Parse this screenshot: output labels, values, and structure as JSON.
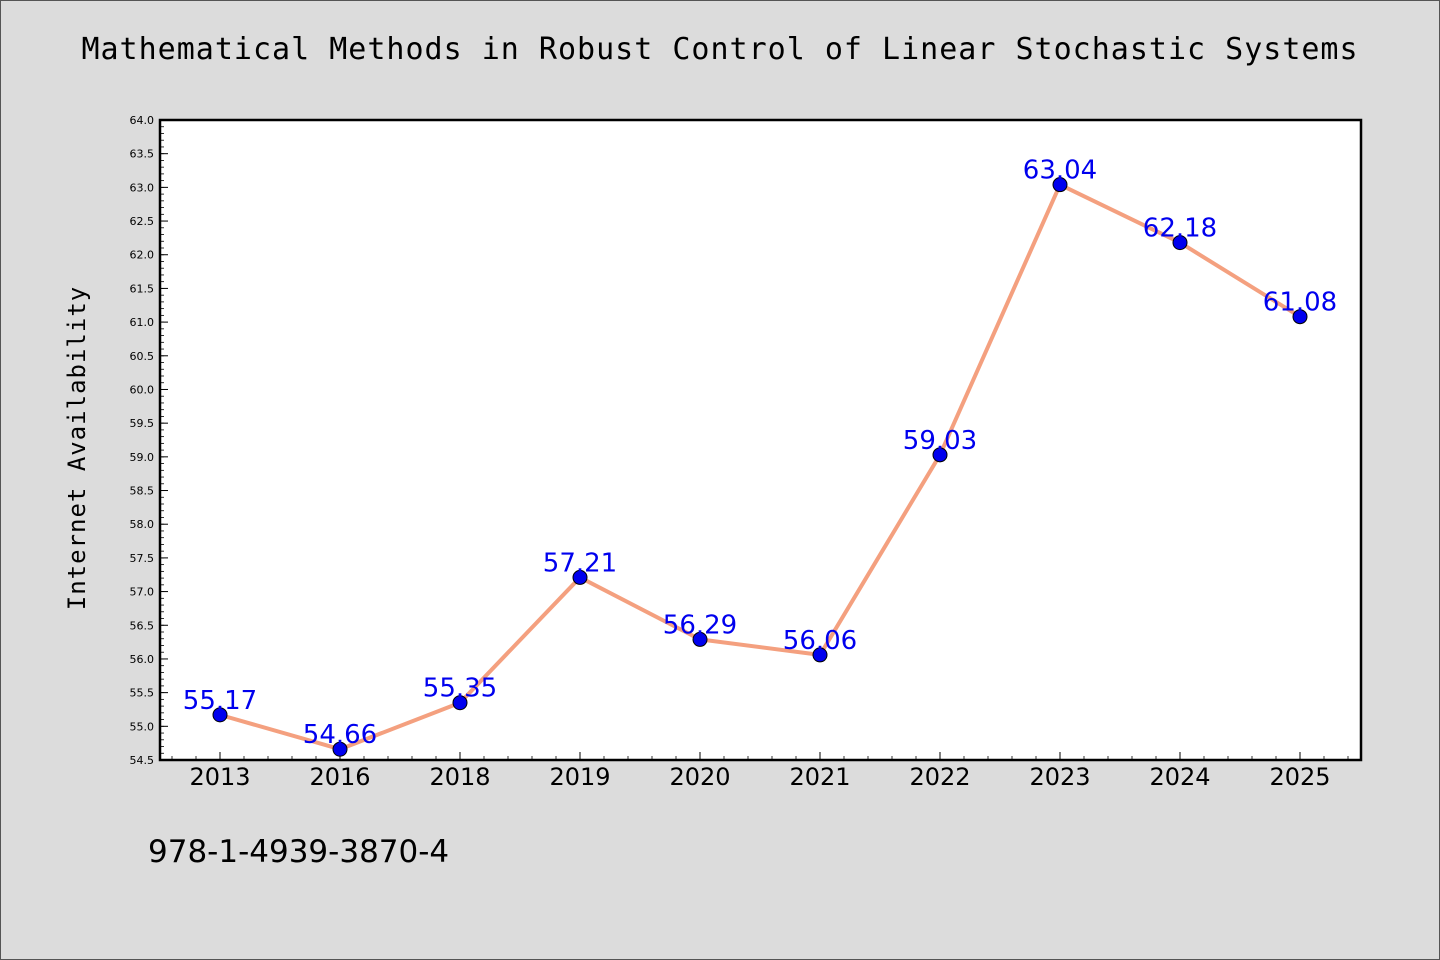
{
  "chart_data": {
    "type": "line",
    "title": "Mathematical Methods in Robust Control of Linear Stochastic Systems",
    "xlabel": "",
    "ylabel": "Internet Availability",
    "categories": [
      "2013",
      "2016",
      "2018",
      "2019",
      "2020",
      "2021",
      "2022",
      "2023",
      "2024",
      "2025"
    ],
    "series": [
      {
        "values": [
          55.17,
          54.66,
          55.35,
          57.21,
          56.29,
          56.06,
          59.03,
          63.04,
          62.18,
          61.08
        ],
        "labels": [
          "55.17",
          "54.66",
          "55.35",
          "57.21",
          "56.29",
          "56.06",
          "59.03",
          "63.04",
          "62.18",
          "61.08"
        ]
      }
    ],
    "ylim": [
      54.5,
      64.0
    ],
    "yticks": [
      "54.5",
      "55.0",
      "55.5",
      "56.0",
      "56.5",
      "57.0",
      "57.5",
      "58.0",
      "58.5",
      "59.0",
      "59.5",
      "60.0",
      "60.5",
      "61.0",
      "61.5",
      "62.0",
      "62.5",
      "63.0",
      "63.5",
      "64.0"
    ],
    "grid": false,
    "legend": "none",
    "colors": {
      "line": "#f4a07f",
      "marker": "#0000ee",
      "marker_edge": "#000000",
      "data_label": "#0000ee",
      "plot_background": "#ffffff",
      "figure_background": "#dcdcdc"
    }
  },
  "footer": {
    "code": "978-1-4939-3870-4"
  }
}
